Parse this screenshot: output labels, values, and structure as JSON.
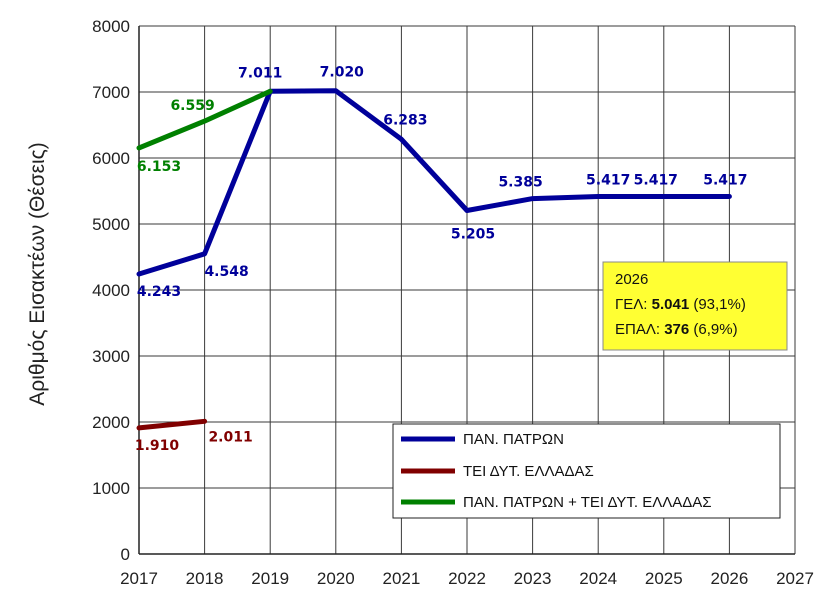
{
  "chart_data": {
    "type": "line",
    "ylabel": "Αριθμός Εισακτέων (Θέσεις)",
    "xlabel": "",
    "xlim": [
      2017,
      2027
    ],
    "ylim": [
      0,
      8000
    ],
    "x_ticks": [
      "2017",
      "2018",
      "2019",
      "2020",
      "2021",
      "2022",
      "2023",
      "2024",
      "2025",
      "2026",
      "2027"
    ],
    "y_ticks": [
      "0",
      "1000",
      "2000",
      "3000",
      "4000",
      "5000",
      "6000",
      "7000",
      "8000"
    ],
    "grid": true,
    "legend_position": "bottom-right",
    "series": [
      {
        "name": "ΠΑΝ. ΠΑΤΡΩΝ",
        "color": "#00009a",
        "x": [
          2017,
          2018,
          2019,
          2020,
          2021,
          2022,
          2023,
          2024,
          2025,
          2026
        ],
        "values": [
          4243,
          4548,
          7011,
          7020,
          6283,
          5205,
          5385,
          5417,
          5417,
          5417
        ],
        "labels": [
          "4.243",
          "4.548",
          "7.011",
          "7.020",
          "6.283",
          "5.205",
          "5.385",
          "5.417",
          "5.417",
          "5.417"
        ]
      },
      {
        "name": "ΤΕΙ ΔΥΤ. ΕΛΛΑΔΑΣ",
        "color": "#800000",
        "x": [
          2017,
          2018
        ],
        "values": [
          1910,
          2011
        ],
        "labels": [
          "1.910",
          "2.011"
        ]
      },
      {
        "name": "ΠΑΝ. ΠΑΤΡΩΝ + ΤΕΙ ΔΥΤ. ΕΛΛΑΔΑΣ",
        "color": "#008000",
        "x": [
          2017,
          2018,
          2019
        ],
        "values": [
          6153,
          6559,
          7011
        ],
        "labels": [
          "6.153",
          "6.559",
          ""
        ]
      }
    ],
    "annotation": {
      "year": "2026",
      "gel_prefix": "ΓΕΛ: ",
      "gel_value": "5.041",
      "gel_pct": " (93,1%)",
      "epal_prefix": "ΕΠΑΛ: ",
      "epal_value": "376",
      "epal_pct": " (6,9%)",
      "background": "#ffff33"
    }
  }
}
